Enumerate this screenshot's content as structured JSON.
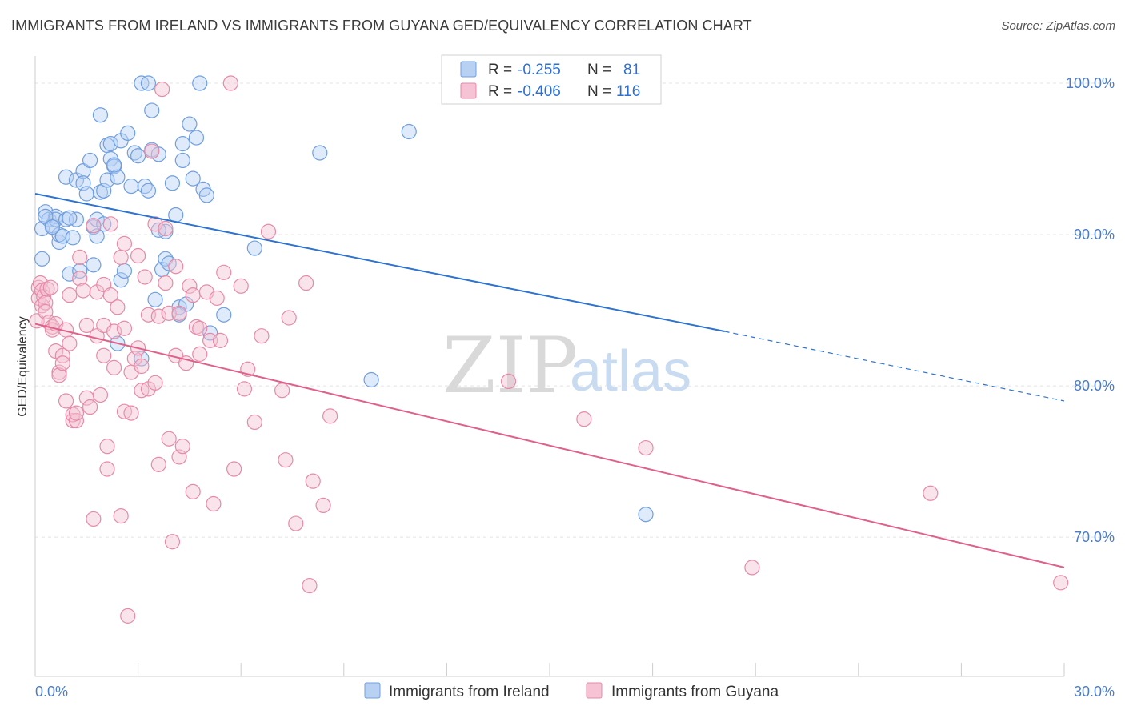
{
  "title": "IMMIGRANTS FROM IRELAND VS IMMIGRANTS FROM GUYANA GED/EQUIVALENCY CORRELATION CHART",
  "source": "Source: ZipAtlas.com",
  "watermark": {
    "zip": "ZIP",
    "atlas": "atlas"
  },
  "legend_box": {
    "rows": [
      {
        "r_label": "R =",
        "r_value": "-0.255",
        "n_label": "N =",
        "n_value": "81"
      },
      {
        "r_label": "R =",
        "r_value": "-0.406",
        "n_label": "N =",
        "n_value": "116"
      }
    ]
  },
  "chart_data": {
    "type": "scatter",
    "title": "IMMIGRANTS FROM IRELAND VS IMMIGRANTS FROM GUYANA GED/EQUIVALENCY CORRELATION CHART",
    "xlabel": "",
    "ylabel": "GED/Equivalency",
    "xlim": [
      0,
      30
    ],
    "ylim": [
      60.8,
      101.8
    ],
    "x_tick_labels": [
      "0.0%",
      "30.0%"
    ],
    "y_ticks": [
      70,
      80,
      90,
      100
    ],
    "y_tick_labels": [
      "70.0%",
      "80.0%",
      "90.0%",
      "100.0%"
    ],
    "grid": true,
    "legend": "bottom-center",
    "series": [
      {
        "name": "Immigrants from Ireland",
        "color": "#6f9fe0",
        "fill": "#b8d1f3",
        "line_color": "#2f74d0",
        "trend": {
          "x0": 0,
          "y0": 92.7,
          "x1": 20.1,
          "y1": 83.6,
          "x_dash_end": 30,
          "y_dash_end": 79.0
        },
        "points": [
          [
            0.2,
            88.4
          ],
          [
            0.2,
            90.4
          ],
          [
            0.3,
            91.5
          ],
          [
            0.4,
            91.0
          ],
          [
            0.5,
            90.6
          ],
          [
            0.6,
            91.2
          ],
          [
            0.6,
            91.0
          ],
          [
            0.7,
            89.5
          ],
          [
            0.7,
            90.0
          ],
          [
            0.8,
            89.9
          ],
          [
            0.9,
            91.0
          ],
          [
            0.9,
            93.8
          ],
          [
            1.0,
            87.4
          ],
          [
            1.1,
            89.8
          ],
          [
            1.2,
            93.6
          ],
          [
            1.2,
            91.0
          ],
          [
            1.3,
            87.6
          ],
          [
            1.4,
            94.2
          ],
          [
            1.4,
            93.4
          ],
          [
            1.5,
            92.7
          ],
          [
            1.6,
            94.9
          ],
          [
            1.7,
            88.0
          ],
          [
            1.7,
            90.5
          ],
          [
            1.8,
            91.0
          ],
          [
            1.9,
            92.8
          ],
          [
            1.9,
            97.9
          ],
          [
            2.0,
            92.9
          ],
          [
            2.1,
            93.6
          ],
          [
            2.1,
            95.9
          ],
          [
            2.2,
            96.0
          ],
          [
            2.2,
            95.0
          ],
          [
            2.3,
            94.5
          ],
          [
            2.4,
            93.8
          ],
          [
            2.4,
            82.8
          ],
          [
            2.5,
            96.2
          ],
          [
            2.5,
            87.0
          ],
          [
            2.6,
            87.6
          ],
          [
            2.7,
            96.7
          ],
          [
            2.8,
            93.2
          ],
          [
            2.9,
            95.4
          ],
          [
            3.0,
            95.2
          ],
          [
            3.1,
            100.0
          ],
          [
            3.1,
            81.8
          ],
          [
            3.2,
            93.2
          ],
          [
            3.3,
            100.0
          ],
          [
            3.3,
            92.9
          ],
          [
            3.4,
            98.2
          ],
          [
            3.4,
            95.6
          ],
          [
            3.5,
            85.7
          ],
          [
            3.6,
            95.3
          ],
          [
            3.7,
            87.7
          ],
          [
            3.8,
            88.4
          ],
          [
            3.8,
            90.2
          ],
          [
            3.9,
            88.1
          ],
          [
            4.0,
            93.4
          ],
          [
            4.1,
            91.3
          ],
          [
            4.2,
            85.2
          ],
          [
            4.3,
            96.0
          ],
          [
            4.3,
            94.9
          ],
          [
            4.4,
            85.4
          ],
          [
            4.5,
            97.3
          ],
          [
            4.6,
            93.7
          ],
          [
            4.7,
            96.4
          ],
          [
            4.8,
            100.0
          ],
          [
            4.9,
            93.0
          ],
          [
            5.0,
            92.6
          ],
          [
            5.1,
            83.5
          ],
          [
            5.5,
            84.7
          ],
          [
            6.4,
            89.1
          ],
          [
            8.3,
            95.4
          ],
          [
            9.8,
            80.4
          ],
          [
            10.9,
            96.8
          ],
          [
            17.8,
            71.5
          ],
          [
            0.3,
            91.2
          ],
          [
            1.0,
            91.1
          ],
          [
            2.0,
            90.7
          ],
          [
            3.6,
            90.3
          ],
          [
            0.5,
            90.5
          ],
          [
            1.8,
            89.9
          ],
          [
            4.2,
            84.7
          ],
          [
            2.3,
            94.6
          ]
        ]
      },
      {
        "name": "Immigrants from Guyana",
        "color": "#e68aa8",
        "fill": "#f5c3d3",
        "line_color": "#e0608a",
        "trend": {
          "x0": 0,
          "y0": 84.1,
          "x1": 30,
          "y1": 68.0
        },
        "points": [
          [
            0.05,
            84.3
          ],
          [
            0.1,
            86.5
          ],
          [
            0.1,
            85.8
          ],
          [
            0.15,
            86.8
          ],
          [
            0.2,
            86.3
          ],
          [
            0.2,
            85.3
          ],
          [
            0.25,
            85.9
          ],
          [
            0.3,
            85.5
          ],
          [
            0.3,
            84.9
          ],
          [
            0.35,
            86.4
          ],
          [
            0.4,
            84.2
          ],
          [
            0.45,
            86.5
          ],
          [
            0.5,
            83.9
          ],
          [
            0.5,
            83.7
          ],
          [
            0.6,
            82.3
          ],
          [
            0.6,
            84.1
          ],
          [
            0.7,
            80.9
          ],
          [
            0.7,
            80.7
          ],
          [
            0.8,
            82.0
          ],
          [
            0.8,
            81.5
          ],
          [
            0.9,
            83.7
          ],
          [
            0.9,
            79.0
          ],
          [
            1.0,
            86.0
          ],
          [
            1.0,
            82.8
          ],
          [
            1.1,
            77.7
          ],
          [
            1.1,
            78.1
          ],
          [
            1.2,
            77.7
          ],
          [
            1.2,
            78.2
          ],
          [
            1.3,
            87.1
          ],
          [
            1.3,
            88.5
          ],
          [
            1.4,
            86.3
          ],
          [
            1.5,
            84.0
          ],
          [
            1.5,
            79.2
          ],
          [
            1.6,
            78.6
          ],
          [
            1.7,
            90.6
          ],
          [
            1.7,
            71.2
          ],
          [
            1.8,
            86.2
          ],
          [
            1.8,
            83.3
          ],
          [
            1.9,
            79.4
          ],
          [
            2.0,
            86.7
          ],
          [
            2.0,
            84.0
          ],
          [
            2.0,
            82.0
          ],
          [
            2.1,
            76.0
          ],
          [
            2.1,
            74.5
          ],
          [
            2.2,
            90.7
          ],
          [
            2.2,
            86.0
          ],
          [
            2.3,
            83.6
          ],
          [
            2.3,
            81.2
          ],
          [
            2.4,
            85.2
          ],
          [
            2.5,
            88.5
          ],
          [
            2.5,
            71.4
          ],
          [
            2.6,
            89.4
          ],
          [
            2.6,
            83.8
          ],
          [
            2.6,
            78.3
          ],
          [
            2.7,
            64.8
          ],
          [
            2.8,
            80.9
          ],
          [
            2.8,
            78.2
          ],
          [
            2.9,
            81.8
          ],
          [
            3.0,
            82.5
          ],
          [
            3.0,
            88.6
          ],
          [
            3.1,
            81.3
          ],
          [
            3.1,
            79.7
          ],
          [
            3.2,
            87.2
          ],
          [
            3.3,
            84.7
          ],
          [
            3.3,
            79.8
          ],
          [
            3.4,
            95.5
          ],
          [
            3.5,
            90.7
          ],
          [
            3.5,
            80.2
          ],
          [
            3.6,
            84.6
          ],
          [
            3.6,
            74.8
          ],
          [
            3.7,
            99.6
          ],
          [
            3.8,
            90.4
          ],
          [
            3.8,
            86.8
          ],
          [
            3.9,
            84.8
          ],
          [
            3.9,
            76.5
          ],
          [
            4.0,
            69.7
          ],
          [
            4.1,
            87.9
          ],
          [
            4.1,
            82.0
          ],
          [
            4.2,
            84.8
          ],
          [
            4.2,
            75.3
          ],
          [
            4.3,
            76.0
          ],
          [
            4.4,
            81.5
          ],
          [
            4.5,
            86.6
          ],
          [
            4.6,
            86.0
          ],
          [
            4.6,
            73.0
          ],
          [
            4.7,
            83.9
          ],
          [
            4.8,
            83.8
          ],
          [
            4.8,
            82.1
          ],
          [
            5.0,
            86.2
          ],
          [
            5.1,
            83.0
          ],
          [
            5.2,
            72.2
          ],
          [
            5.3,
            85.8
          ],
          [
            5.4,
            83.0
          ],
          [
            5.5,
            87.5
          ],
          [
            5.7,
            100.0
          ],
          [
            5.8,
            74.5
          ],
          [
            6.0,
            86.6
          ],
          [
            6.1,
            79.8
          ],
          [
            6.2,
            81.1
          ],
          [
            6.4,
            77.6
          ],
          [
            6.6,
            83.3
          ],
          [
            6.8,
            90.2
          ],
          [
            7.2,
            79.7
          ],
          [
            7.3,
            75.1
          ],
          [
            7.4,
            84.5
          ],
          [
            7.6,
            70.9
          ],
          [
            7.9,
            86.8
          ],
          [
            8.0,
            66.8
          ],
          [
            8.1,
            73.7
          ],
          [
            8.4,
            72.1
          ],
          [
            8.6,
            78.0
          ],
          [
            13.8,
            80.3
          ],
          [
            16.0,
            77.8
          ],
          [
            17.8,
            75.9
          ],
          [
            20.9,
            68.0
          ],
          [
            26.1,
            72.9
          ],
          [
            29.9,
            67.0
          ]
        ]
      }
    ]
  }
}
